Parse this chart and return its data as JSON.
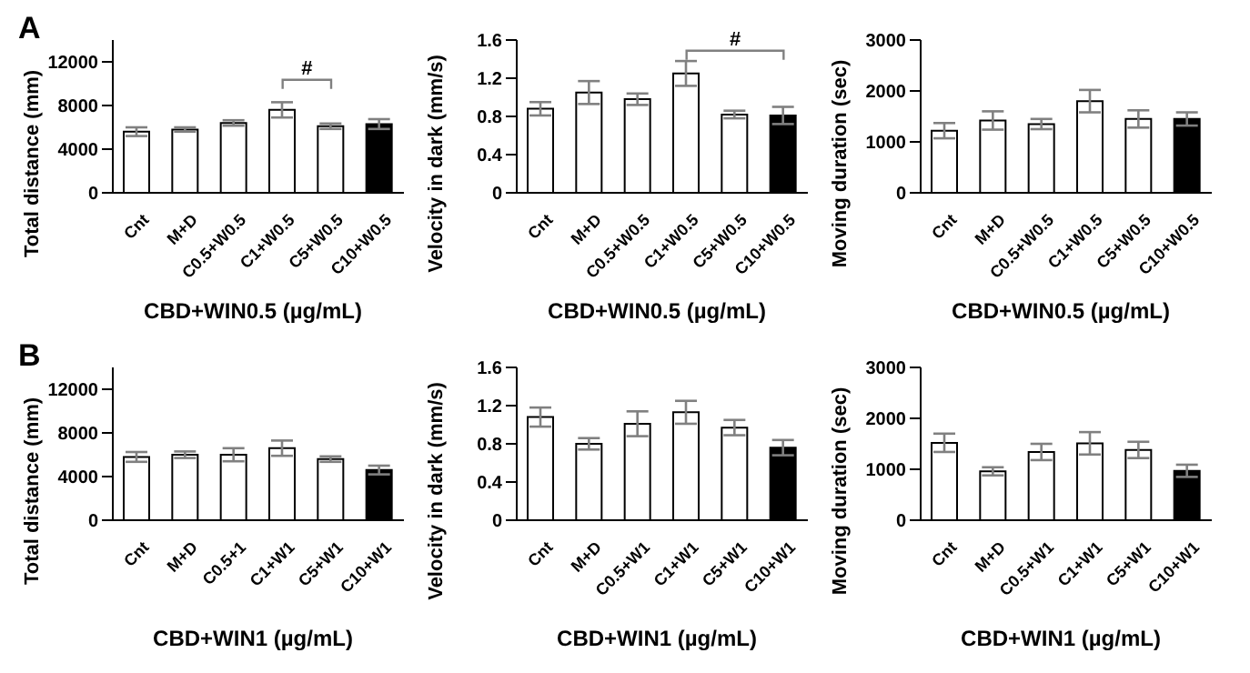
{
  "chart_data": [
    {
      "type": "bar",
      "title": "A",
      "ylabel": "Total distance (mm)",
      "xlabel": "CBD+WIN0.5 (µg/mL)",
      "categories": [
        "Cnt",
        "M+D",
        "C0.5+W0.5",
        "C1+W0.5",
        "C5+W0.5",
        "C10+W0.5"
      ],
      "values": [
        5600,
        5800,
        6400,
        7600,
        6100,
        6300
      ],
      "errors": [
        400,
        200,
        250,
        700,
        250,
        450
      ],
      "colors": [
        "#ffffff",
        "#ffffff",
        "#ffffff",
        "#ffffff",
        "#ffffff",
        "#000000"
      ],
      "ylim": [
        0,
        14000
      ],
      "yticks": [
        0,
        4000,
        8000,
        12000
      ],
      "annotations": [
        "#"
      ]
    },
    {
      "type": "bar",
      "ylabel": "Velocity in dark (mm/s)",
      "xlabel": "CBD+WIN0.5 (µg/mL)",
      "categories": [
        "Cnt",
        "M+D",
        "C0.5+W0.5",
        "C1+W0.5",
        "C5+W0.5",
        "C10+W0.5"
      ],
      "values": [
        0.88,
        1.05,
        0.98,
        1.25,
        0.82,
        0.81
      ],
      "errors": [
        0.07,
        0.12,
        0.06,
        0.13,
        0.04,
        0.09
      ],
      "colors": [
        "#ffffff",
        "#ffffff",
        "#ffffff",
        "#ffffff",
        "#ffffff",
        "#000000"
      ],
      "ylim": [
        0,
        1.6
      ],
      "yticks": [
        {
          "value": 0,
          "label": "0"
        },
        {
          "value": 0.4,
          "label": "0.4"
        },
        {
          "value": 0.8,
          "label": "0.8"
        },
        {
          "value": 1.2,
          "label": "1.2"
        },
        {
          "value": 1.6,
          "label": "1.6"
        }
      ],
      "annotations": [
        "#"
      ]
    },
    {
      "type": "bar",
      "ylabel": "Moving duration (sec)",
      "xlabel": "CBD+WIN0.5 (µg/mL)",
      "categories": [
        "Cnt",
        "M+D",
        "C0.5+W0.5",
        "C1+W0.5",
        "C5+W0.5",
        "C10+W0.5"
      ],
      "values": [
        1220,
        1420,
        1350,
        1800,
        1450,
        1450
      ],
      "errors": [
        150,
        180,
        100,
        220,
        170,
        130
      ],
      "colors": [
        "#ffffff",
        "#ffffff",
        "#ffffff",
        "#ffffff",
        "#ffffff",
        "#000000"
      ],
      "ylim": [
        0,
        3000
      ],
      "yticks": [
        0,
        1000,
        2000,
        3000
      ]
    },
    {
      "type": "bar",
      "title": "B",
      "ylabel": "Total distance (mm)",
      "xlabel": "CBD+WIN1 (µg/mL)",
      "categories": [
        "Cnt",
        "M+D",
        "C0.5+1",
        "C1+W1",
        "C5+W1",
        "C10+W1"
      ],
      "values": [
        5800,
        6000,
        6000,
        6600,
        5600,
        4600
      ],
      "errors": [
        450,
        300,
        600,
        700,
        250,
        400
      ],
      "colors": [
        "#ffffff",
        "#ffffff",
        "#ffffff",
        "#ffffff",
        "#ffffff",
        "#000000"
      ],
      "ylim": [
        0,
        14000
      ],
      "yticks": [
        0,
        4000,
        8000,
        12000
      ]
    },
    {
      "type": "bar",
      "ylabel": "Velocity in dark (mm/s)",
      "xlabel": "CBD+WIN1 (µg/mL)",
      "categories": [
        "Cnt",
        "M+D",
        "C0.5+W1",
        "C1+W1",
        "C5+W1",
        "C10+W1"
      ],
      "values": [
        1.08,
        0.8,
        1.01,
        1.13,
        0.97,
        0.76
      ],
      "errors": [
        0.1,
        0.06,
        0.13,
        0.12,
        0.08,
        0.08
      ],
      "colors": [
        "#ffffff",
        "#ffffff",
        "#ffffff",
        "#ffffff",
        "#ffffff",
        "#000000"
      ],
      "ylim": [
        0,
        1.6
      ],
      "yticks": [
        {
          "value": 0,
          "label": "0"
        },
        {
          "value": 0.4,
          "label": "0.4"
        },
        {
          "value": 0.8,
          "label": "0.8"
        },
        {
          "value": 1.2,
          "label": "1.2"
        },
        {
          "value": 1.6,
          "label": "1.6"
        }
      ]
    },
    {
      "type": "bar",
      "ylabel": "Moving duration (sec)",
      "xlabel": "CBD+WIN1 (µg/mL)",
      "categories": [
        "Cnt",
        "M+D",
        "C0.5+W1",
        "C1+W1",
        "C5+W1",
        "C10+W1"
      ],
      "values": [
        1520,
        960,
        1340,
        1510,
        1380,
        970
      ],
      "errors": [
        180,
        80,
        160,
        220,
        160,
        120
      ],
      "colors": [
        "#ffffff",
        "#ffffff",
        "#ffffff",
        "#ffffff",
        "#ffffff",
        "#000000"
      ],
      "ylim": [
        0,
        3000
      ],
      "yticks": [
        0,
        1000,
        2000,
        3000
      ]
    }
  ]
}
